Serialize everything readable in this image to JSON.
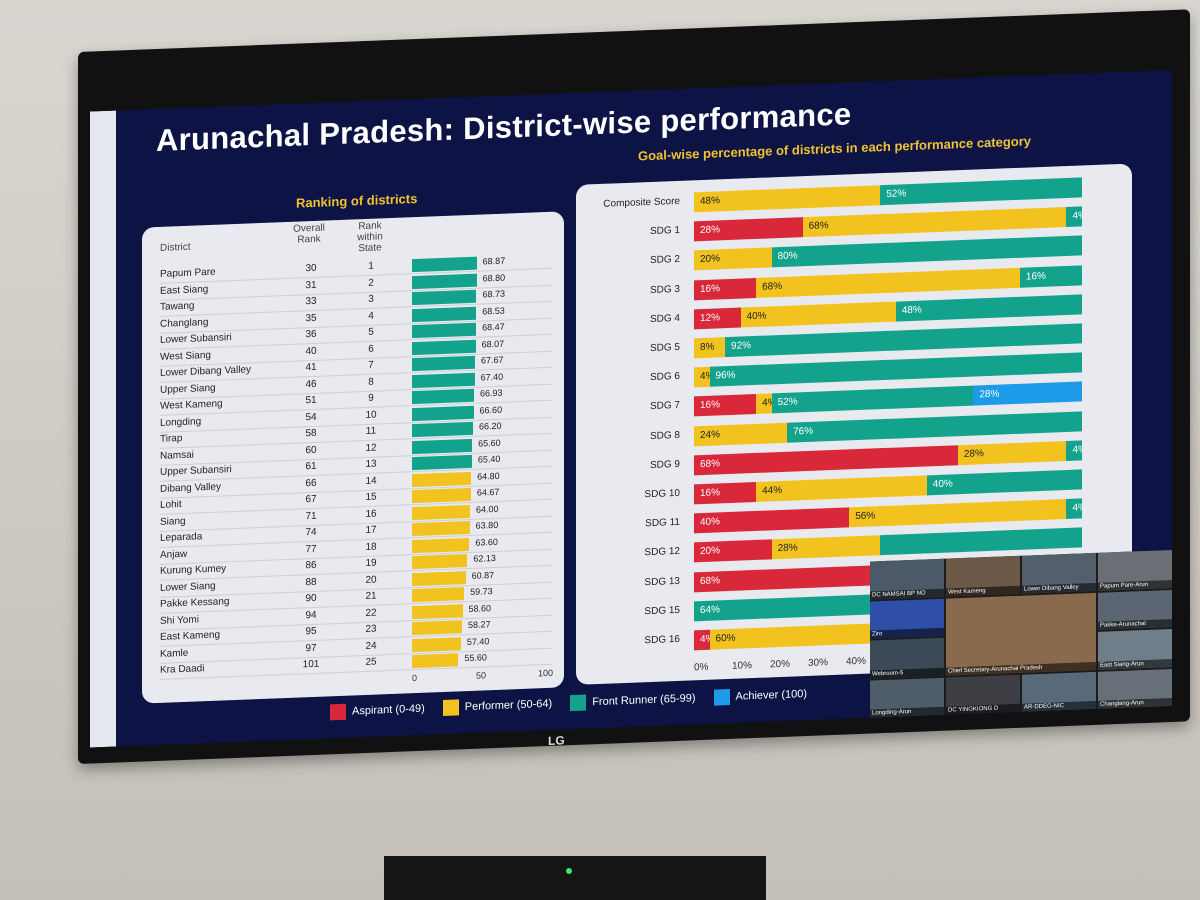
{
  "title": "Arunachal Pradesh: District-wise performance",
  "tv_brand": "LG",
  "left_section_title": "Ranking of districts",
  "right_section_title": "Goal-wise percentage of districts in each performance category",
  "colors": {
    "aspirant": "#d8283a",
    "performer": "#f2c21e",
    "front_runner": "#13a38c",
    "achiever": "#1e9be8"
  },
  "left_headers": {
    "district": "District",
    "overall": "Overall Rank",
    "state": "Rank within State"
  },
  "left_axis": [
    "0",
    "50",
    "100"
  ],
  "districts": [
    {
      "name": "Papum Pare",
      "overall": "30",
      "state": "1",
      "score": 68.87,
      "label": "68.87"
    },
    {
      "name": "East Siang",
      "overall": "31",
      "state": "2",
      "score": 68.8,
      "label": "68.80"
    },
    {
      "name": "Tawang",
      "overall": "33",
      "state": "3",
      "score": 68.73,
      "label": "68.73"
    },
    {
      "name": "Changlang",
      "overall": "35",
      "state": "4",
      "score": 68.53,
      "label": "68.53"
    },
    {
      "name": "Lower Subansiri",
      "overall": "36",
      "state": "5",
      "score": 68.47,
      "label": "68.47"
    },
    {
      "name": "West Siang",
      "overall": "40",
      "state": "6",
      "score": 68.07,
      "label": "68.07"
    },
    {
      "name": "Lower Dibang Valley",
      "overall": "41",
      "state": "7",
      "score": 67.67,
      "label": "67.67"
    },
    {
      "name": "Upper Siang",
      "overall": "46",
      "state": "8",
      "score": 67.4,
      "label": "67.40"
    },
    {
      "name": "West Kameng",
      "overall": "51",
      "state": "9",
      "score": 66.93,
      "label": "66.93"
    },
    {
      "name": "Longding",
      "overall": "54",
      "state": "10",
      "score": 66.6,
      "label": "66.60"
    },
    {
      "name": "Tirap",
      "overall": "58",
      "state": "11",
      "score": 66.2,
      "label": "66.20"
    },
    {
      "name": "Namsai",
      "overall": "60",
      "state": "12",
      "score": 65.6,
      "label": "65.60"
    },
    {
      "name": "Upper Subansiri",
      "overall": "61",
      "state": "13",
      "score": 65.4,
      "label": "65.40"
    },
    {
      "name": "Dibang Valley",
      "overall": "66",
      "state": "14",
      "score": 64.8,
      "label": "64.80"
    },
    {
      "name": "Lohit",
      "overall": "67",
      "state": "15",
      "score": 64.67,
      "label": "64.67"
    },
    {
      "name": "Siang",
      "overall": "71",
      "state": "16",
      "score": 64.0,
      "label": "64.00"
    },
    {
      "name": "Leparada",
      "overall": "74",
      "state": "17",
      "score": 63.8,
      "label": "63.80"
    },
    {
      "name": "Anjaw",
      "overall": "77",
      "state": "18",
      "score": 63.6,
      "label": "63.60"
    },
    {
      "name": "Kurung Kumey",
      "overall": "86",
      "state": "19",
      "score": 62.13,
      "label": "62.13"
    },
    {
      "name": "Lower Siang",
      "overall": "88",
      "state": "20",
      "score": 60.87,
      "label": "60.87"
    },
    {
      "name": "Pakke Kessang",
      "overall": "90",
      "state": "21",
      "score": 59.73,
      "label": "59.73"
    },
    {
      "name": "Shi Yomi",
      "overall": "94",
      "state": "22",
      "score": 58.6,
      "label": "58.60"
    },
    {
      "name": "East Kameng",
      "overall": "95",
      "state": "23",
      "score": 58.27,
      "label": "58.27"
    },
    {
      "name": "Kamle",
      "overall": "97",
      "state": "24",
      "score": 57.4,
      "label": "57.40"
    },
    {
      "name": "Kra Daadi",
      "overall": "101",
      "state": "25",
      "score": 55.6,
      "label": "55.60"
    }
  ],
  "right_axis": [
    "0%",
    "10%",
    "20%",
    "30%",
    "40%"
  ],
  "goals": [
    {
      "name": "Composite Score",
      "segs": [
        [
          "p",
          48,
          "48%"
        ],
        [
          "f",
          52,
          "52%"
        ]
      ]
    },
    {
      "name": "SDG 1",
      "segs": [
        [
          "a",
          28,
          "28%"
        ],
        [
          "p",
          68,
          "68%"
        ],
        [
          "f",
          4,
          "4%"
        ]
      ]
    },
    {
      "name": "SDG 2",
      "segs": [
        [
          "p",
          20,
          "20%"
        ],
        [
          "f",
          80,
          "80%"
        ]
      ]
    },
    {
      "name": "SDG 3",
      "segs": [
        [
          "a",
          16,
          "16%"
        ],
        [
          "p",
          68,
          "68%"
        ],
        [
          "f",
          16,
          "16%"
        ]
      ]
    },
    {
      "name": "SDG 4",
      "segs": [
        [
          "a",
          12,
          "12%"
        ],
        [
          "p",
          40,
          "40%"
        ],
        [
          "f",
          48,
          "48%"
        ]
      ]
    },
    {
      "name": "SDG 5",
      "segs": [
        [
          "p",
          8,
          "8%"
        ],
        [
          "f",
          92,
          "92%"
        ]
      ]
    },
    {
      "name": "SDG 6",
      "segs": [
        [
          "p",
          4,
          "4%"
        ],
        [
          "f",
          96,
          "96%"
        ]
      ]
    },
    {
      "name": "SDG 7",
      "segs": [
        [
          "a",
          16,
          "16%"
        ],
        [
          "p",
          4,
          "4%"
        ],
        [
          "f",
          52,
          "52%"
        ],
        [
          "h",
          28,
          "28%"
        ]
      ]
    },
    {
      "name": "SDG 8",
      "segs": [
        [
          "p",
          24,
          "24%"
        ],
        [
          "f",
          76,
          "76%"
        ]
      ]
    },
    {
      "name": "SDG 9",
      "segs": [
        [
          "a",
          68,
          "68%"
        ],
        [
          "p",
          28,
          "28%"
        ],
        [
          "f",
          4,
          "4%"
        ]
      ]
    },
    {
      "name": "SDG 10",
      "segs": [
        [
          "a",
          16,
          "16%"
        ],
        [
          "p",
          44,
          "44%"
        ],
        [
          "f",
          40,
          "40%"
        ]
      ]
    },
    {
      "name": "SDG 11",
      "segs": [
        [
          "a",
          40,
          "40%"
        ],
        [
          "p",
          56,
          "56%"
        ],
        [
          "f",
          4,
          "4%"
        ]
      ]
    },
    {
      "name": "SDG 12",
      "segs": [
        [
          "a",
          20,
          "20%"
        ],
        [
          "p",
          28,
          "28%"
        ],
        [
          "f",
          52,
          ""
        ]
      ]
    },
    {
      "name": "SDG 13",
      "segs": [
        [
          "a",
          68,
          "68%"
        ],
        [
          "p",
          32,
          ""
        ]
      ]
    },
    {
      "name": "SDG 15",
      "segs": [
        [
          "f",
          64,
          "64%"
        ],
        [
          "p",
          36,
          ""
        ]
      ]
    },
    {
      "name": "SDG 16",
      "segs": [
        [
          "a",
          4,
          "4%"
        ],
        [
          "p",
          60,
          "60%"
        ],
        [
          "f",
          36,
          ""
        ]
      ]
    }
  ],
  "legend": [
    {
      "key": "aspirant",
      "label": "Aspirant (0-49)"
    },
    {
      "key": "performer",
      "label": "Performer (50-64)"
    },
    {
      "key": "front_runner",
      "label": "Front Runner (65-99)"
    },
    {
      "key": "achiever",
      "label": "Achiever (100)"
    }
  ],
  "video_tiles": [
    "DC NAMSAI BP NO",
    "West Kameng",
    "Lower Dibang Valley",
    "Papum Pare-Arun",
    "Ziro",
    "",
    "",
    "Pakke-Arunachal",
    "Webroom-5",
    "",
    "",
    "East Siang-Arun",
    "Longding-Arun",
    "DC YINGKIONG D",
    "AR-DDEG-NIC",
    "Changlang-Arun"
  ],
  "video_big_label": "Chief Secretary-Arunachal Pradesh"
}
